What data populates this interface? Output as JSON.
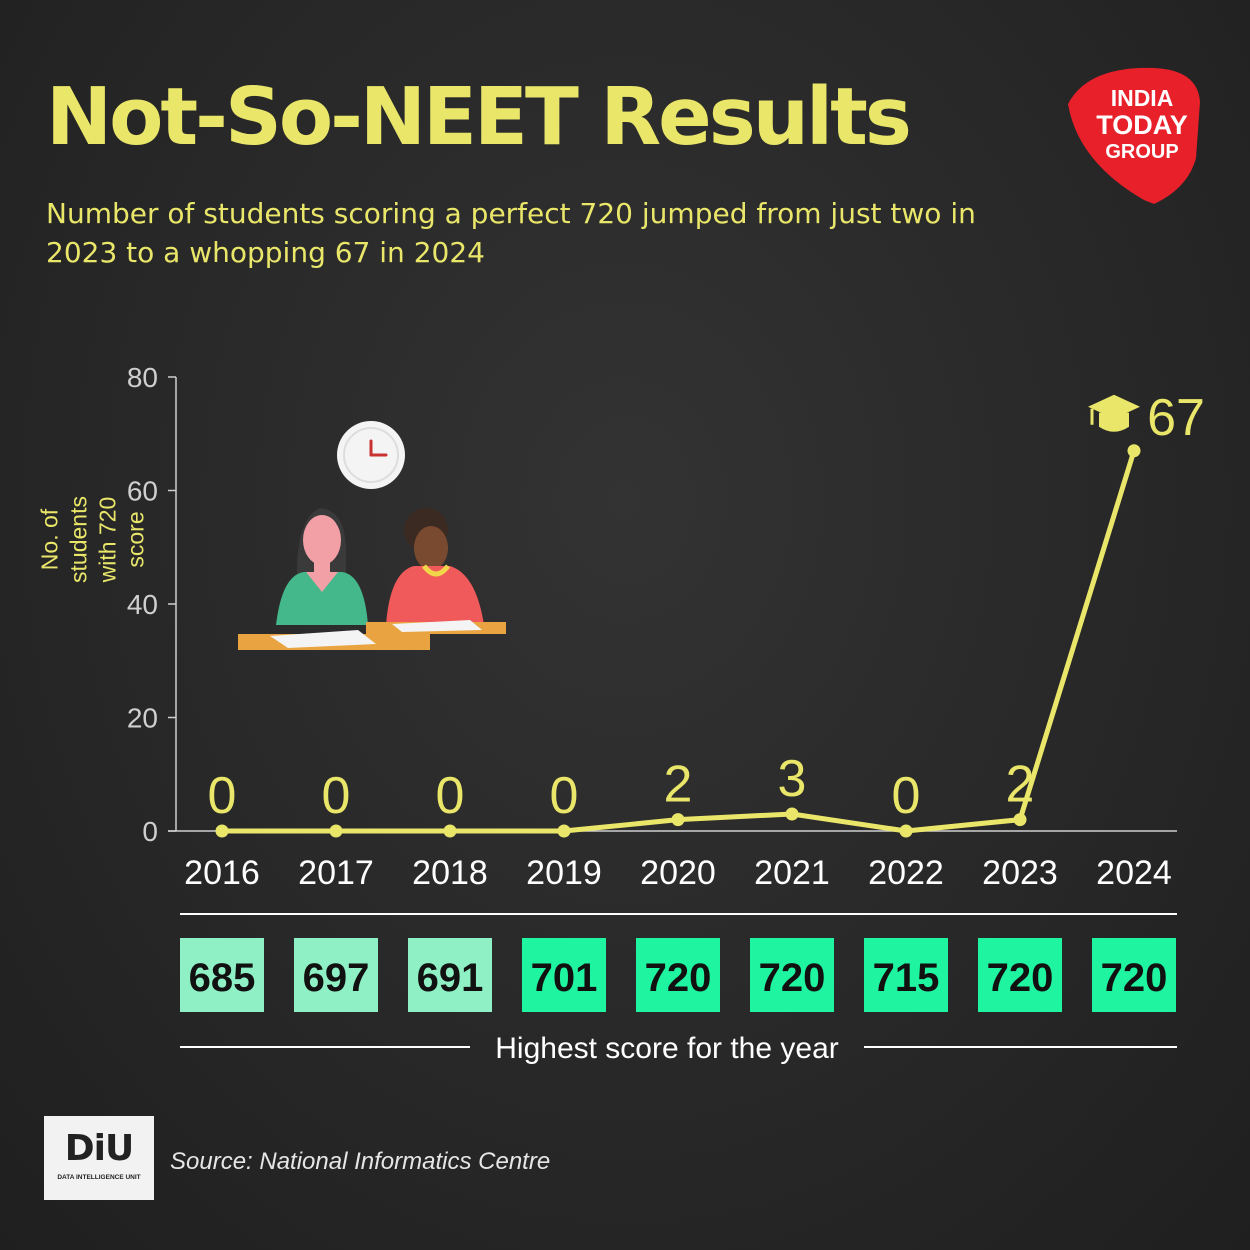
{
  "title": "Not-So-NEET Results",
  "subtitle": "Number of students scoring a perfect 720 jumped from just two in 2023 to a whopping 67 in 2024",
  "brand_logo": {
    "lines": [
      "INDIA",
      "TODAY",
      "GROUP"
    ],
    "color": "#e8202a"
  },
  "source_logo": {
    "text": "DiU",
    "sub": "DATA INTELLIGENCE UNIT"
  },
  "source": "Source: National Informatics Centre",
  "icons": [
    "clock-icon",
    "graduation-cap-icon",
    "students-illustration"
  ],
  "colors": {
    "accent": "#e9e66a",
    "score_light": "#8ef0c4",
    "score_bright": "#1ff5a0",
    "background": "#262626"
  },
  "chart_data": {
    "type": "line",
    "categories": [
      "2016",
      "2017",
      "2018",
      "2019",
      "2020",
      "2021",
      "2022",
      "2023",
      "2024"
    ],
    "values": [
      0,
      0,
      0,
      0,
      2,
      3,
      0,
      2,
      67
    ],
    "data_labels": [
      "0",
      "0",
      "0",
      "0",
      "2",
      "3",
      "0",
      "2",
      "67"
    ],
    "ylabel": "No. of students with 720 score",
    "ylim": [
      0,
      80
    ],
    "yticks": [
      0,
      20,
      40,
      60,
      80
    ],
    "grid": false,
    "highest_scores": {
      "label": "Highest score for the year",
      "values": [
        685,
        697,
        691,
        701,
        720,
        720,
        715,
        720,
        720
      ]
    }
  }
}
